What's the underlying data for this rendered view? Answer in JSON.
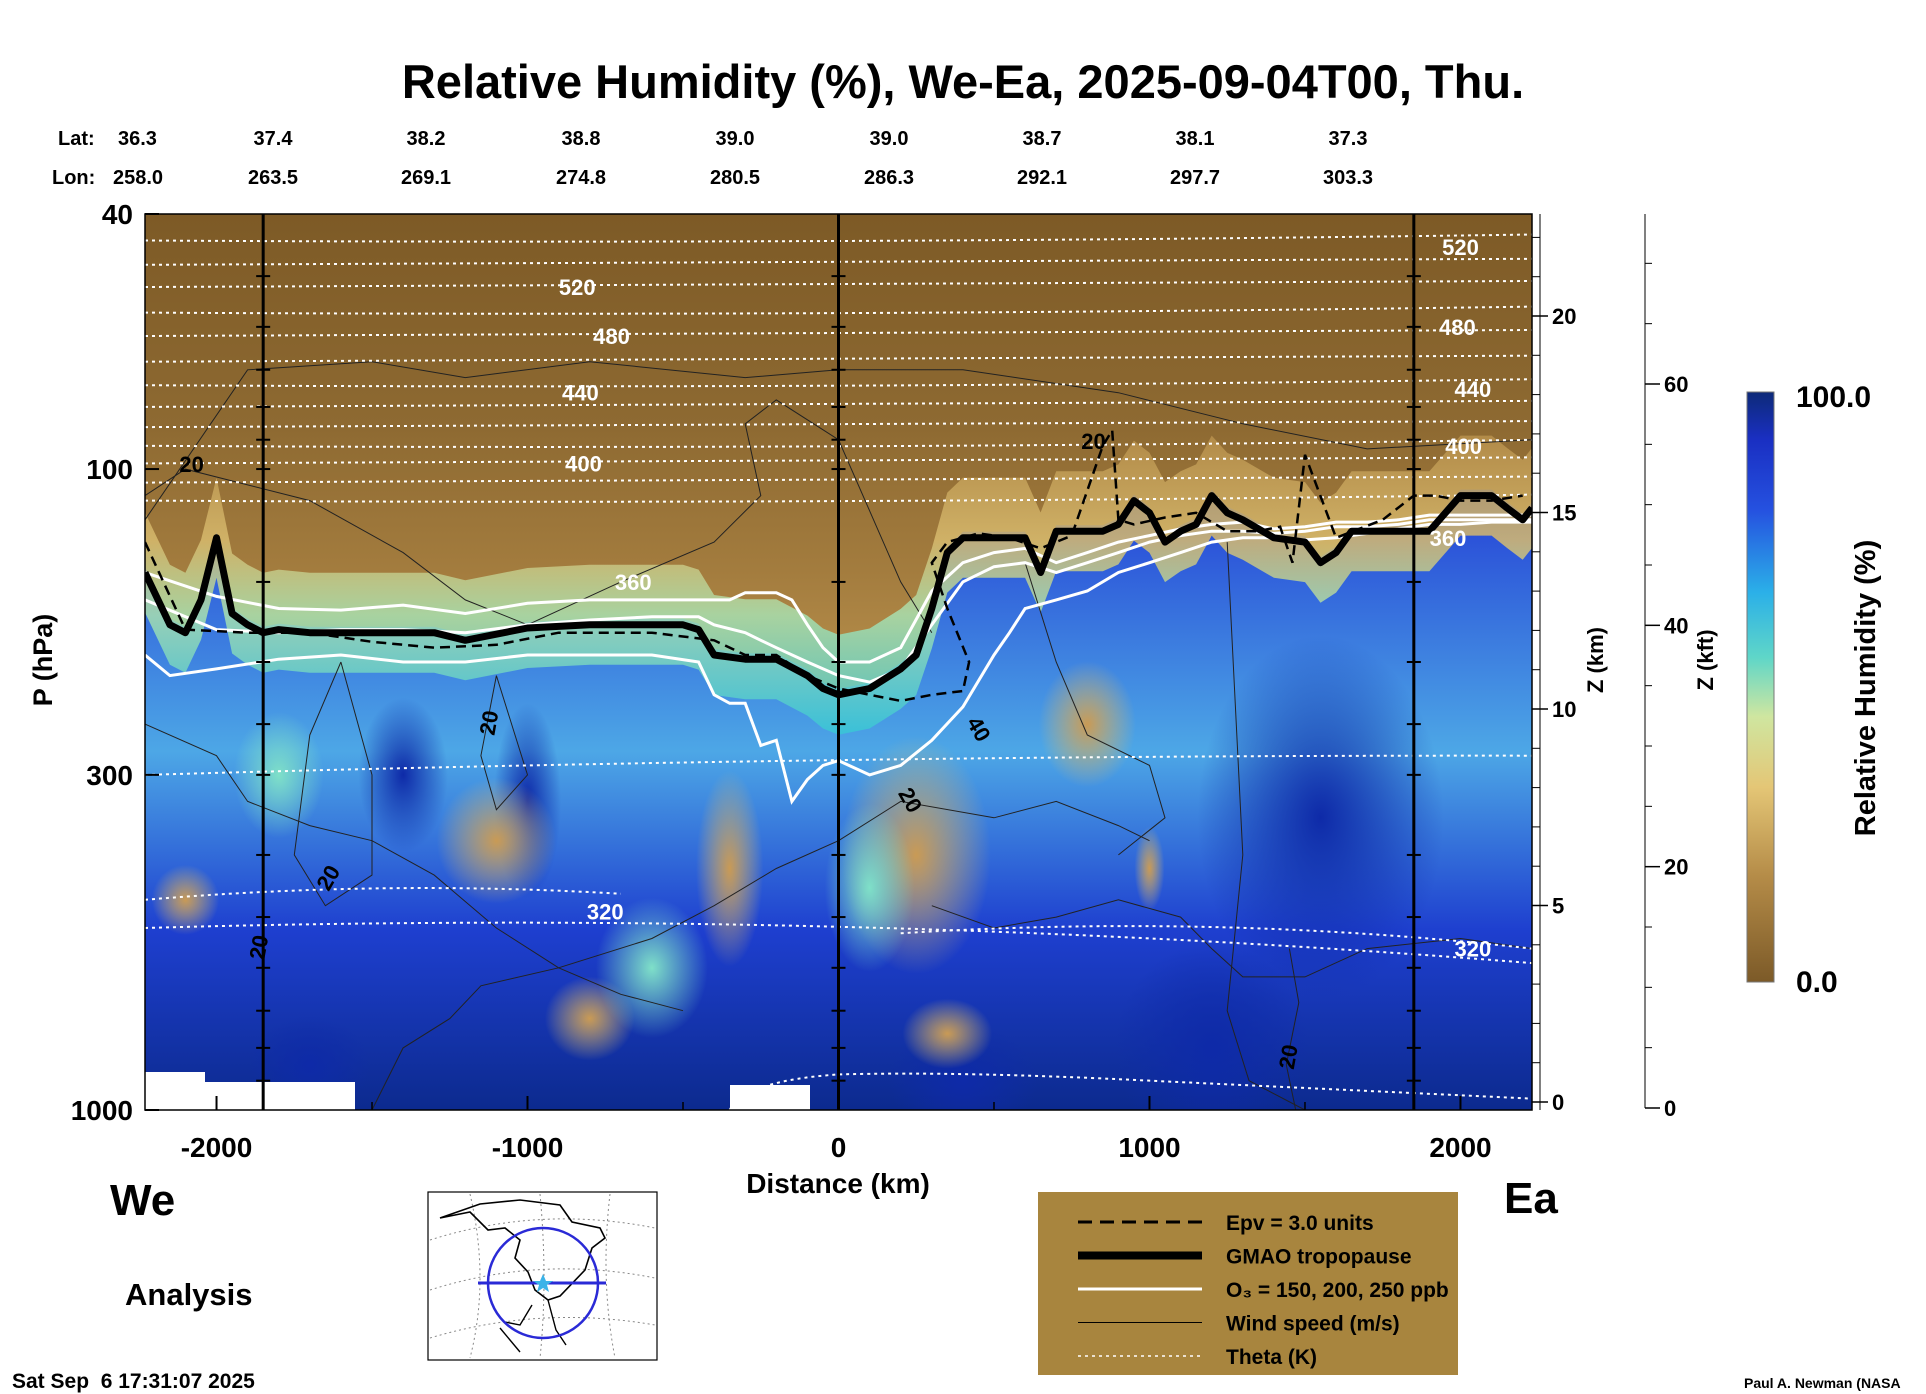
{
  "title": "Relative Humidity (%), We-Ea, 2025-09-04T00, Thu.",
  "header": {
    "lat_label": "Lat:",
    "lon_label": "Lon:",
    "lat_values": [
      "36.3",
      "37.4",
      "38.2",
      "38.8",
      "39.0",
      "39.0",
      "38.7",
      "38.1",
      "37.3"
    ],
    "lon_values": [
      "258.0",
      "263.5",
      "269.1",
      "274.8",
      "280.5",
      "286.3",
      "292.1",
      "297.7",
      "303.3"
    ]
  },
  "chart_data": {
    "type": "heatmap",
    "variable": "Relative Humidity (%)",
    "xlabel": "Distance (km)",
    "ylabel": "P (hPa)",
    "x_range": [
      -2230,
      2230
    ],
    "x_ticks": [
      -2000,
      -1000,
      0,
      1000,
      2000
    ],
    "x_tick_labels": [
      "-2000",
      "-1000",
      "0",
      "1000",
      "2000"
    ],
    "y_range": [
      1000,
      40
    ],
    "y_scale": "log",
    "y_ticks": [
      40,
      100,
      300,
      1000
    ],
    "y_tick_labels": [
      "40",
      "100",
      "300",
      "1000"
    ],
    "z_km_label": "Z (km)",
    "z_km_ticks": [
      0,
      5,
      10,
      15,
      20
    ],
    "z_km_tick_labels": [
      "0",
      "5",
      "10",
      "15",
      "20"
    ],
    "z_kft_label": "Z (kft)",
    "z_kft_ticks": [
      0,
      20,
      40,
      60
    ],
    "z_kft_tick_labels": [
      "0",
      "20",
      "40",
      "60"
    ],
    "vertical_markers_km": [
      -1850,
      0,
      1850
    ],
    "west_label": "We",
    "east_label": "Ea",
    "colorbar": {
      "label": "Relative Humidity (%)",
      "min": 0.0,
      "max": 100.0,
      "min_label": "0.0",
      "max_label": "100.0"
    },
    "theta_contour_labels": [
      {
        "label": "520",
        "x": -840,
        "p": 52
      },
      {
        "label": "480",
        "x": -730,
        "p": 62
      },
      {
        "label": "440",
        "x": -830,
        "p": 76
      },
      {
        "label": "400",
        "x": -820,
        "p": 98
      },
      {
        "label": "360",
        "x": -660,
        "p": 150
      },
      {
        "label": "320",
        "x": -750,
        "p": 490
      },
      {
        "label": "520",
        "x": 2000,
        "p": 45
      },
      {
        "label": "480",
        "x": 1990,
        "p": 60
      },
      {
        "label": "440",
        "x": 2040,
        "p": 75
      },
      {
        "label": "400",
        "x": 2010,
        "p": 92
      },
      {
        "label": "360",
        "x": 1960,
        "p": 128
      },
      {
        "label": "320",
        "x": 2040,
        "p": 560
      }
    ],
    "wind_contour_labels": [
      {
        "label": "20",
        "x": -2080,
        "p": 101
      },
      {
        "label": "20",
        "x": -1100,
        "p": 250
      },
      {
        "label": "20",
        "x": -1620,
        "p": 440
      },
      {
        "label": "20",
        "x": -1840,
        "p": 560
      },
      {
        "label": "20",
        "x": 820,
        "p": 93
      },
      {
        "label": "40",
        "x": 430,
        "p": 258
      },
      {
        "label": "20",
        "x": 210,
        "p": 333
      },
      {
        "label": "20",
        "x": 1470,
        "p": 830
      }
    ],
    "series": [
      {
        "name": "GMAO tropopause",
        "style": "thick-black",
        "x": [
          -2230,
          -2150,
          -2100,
          -2050,
          -2000,
          -1950,
          -1900,
          -1850,
          -1800,
          -1700,
          -1500,
          -1300,
          -1200,
          -1000,
          -800,
          -500,
          -450,
          -400,
          -300,
          -200,
          -100,
          -50,
          0,
          100,
          200,
          250,
          300,
          350,
          400,
          500,
          600,
          650,
          700,
          750,
          850,
          900,
          950,
          1000,
          1050,
          1100,
          1150,
          1200,
          1250,
          1300,
          1400,
          1500,
          1550,
          1600,
          1650,
          1700,
          1800,
          1900,
          2000,
          2100,
          2150,
          2200,
          2230
        ],
        "p": [
          145,
          175,
          180,
          160,
          128,
          168,
          175,
          180,
          178,
          180,
          180,
          180,
          185,
          177,
          175,
          175,
          178,
          195,
          198,
          198,
          210,
          220,
          225,
          220,
          205,
          195,
          165,
          135,
          128,
          128,
          128,
          145,
          125,
          125,
          125,
          122,
          112,
          117,
          130,
          125,
          122,
          110,
          117,
          120,
          128,
          130,
          140,
          135,
          125,
          125,
          125,
          125,
          110,
          110,
          115,
          120,
          115
        ]
      },
      {
        "name": "Epv = 3.0 units",
        "style": "dashed-black",
        "x": [
          -2230,
          -2100,
          -1900,
          -1700,
          -1500,
          -1300,
          -1100,
          -900,
          -600,
          -400,
          -300,
          -200,
          -100,
          0,
          100,
          200,
          300,
          400,
          420,
          350,
          300,
          350,
          450,
          550,
          650,
          750,
          850,
          880,
          900,
          950,
          1050,
          1150,
          1250,
          1350,
          1420,
          1460,
          1500,
          1600,
          1750,
          1850,
          1920,
          2000,
          2100,
          2200
        ],
        "p": [
          130,
          178,
          180,
          180,
          186,
          190,
          188,
          180,
          180,
          185,
          195,
          195,
          210,
          220,
          225,
          230,
          225,
          222,
          200,
          165,
          140,
          130,
          126,
          128,
          133,
          127,
          92,
          87,
          120,
          122,
          119,
          117,
          125,
          125,
          123,
          140,
          95,
          128,
          120,
          110,
          110,
          112,
          112,
          110
        ]
      },
      {
        "name": "O3 = 150 ppb",
        "style": "white",
        "x": [
          -2230,
          -2000,
          -1800,
          -1600,
          -1400,
          -1200,
          -1000,
          -800,
          -600,
          -450,
          -400,
          -350,
          -300,
          -250,
          -200,
          -150,
          -100,
          -50,
          0,
          100,
          200,
          300,
          400,
          500,
          600,
          700,
          800,
          900,
          1000,
          1100,
          1200,
          1300,
          1400,
          1500,
          1600,
          1700,
          1800,
          1900,
          2000,
          2100,
          2230
        ],
        "p": [
          145,
          158,
          165,
          166,
          163,
          168,
          162,
          160,
          160,
          160,
          160,
          160,
          156,
          156,
          156,
          160,
          175,
          190,
          200,
          200,
          190,
          155,
          140,
          135,
          133,
          140,
          135,
          130,
          127,
          124,
          122,
          121,
          124,
          123,
          121,
          121,
          120,
          118,
          118,
          118,
          118
        ]
      },
      {
        "name": "O3 = 200 ppb",
        "style": "white",
        "x": [
          -2230,
          -2000,
          -1800,
          -1600,
          -1400,
          -1200,
          -1000,
          -800,
          -600,
          -450,
          -400,
          -300,
          -250,
          -200,
          -100,
          0,
          100,
          200,
          300,
          400,
          500,
          600,
          700,
          800,
          900,
          1000,
          1100,
          1200,
          1300,
          1400,
          1500,
          1600,
          1700,
          1800,
          1900,
          2000,
          2100,
          2230
        ],
        "p": [
          160,
          178,
          180,
          178,
          178,
          180,
          175,
          172,
          170,
          170,
          175,
          180,
          185,
          190,
          200,
          210,
          215,
          205,
          175,
          150,
          142,
          140,
          145,
          140,
          135,
          130,
          127,
          125,
          125,
          126,
          125,
          123,
          123,
          122,
          120,
          120,
          120,
          120
        ]
      },
      {
        "name": "O3 = 250 ppb",
        "style": "white",
        "x": [
          -2230,
          -2150,
          -2000,
          -1800,
          -1600,
          -1400,
          -1200,
          -1000,
          -800,
          -600,
          -450,
          -400,
          -350,
          -300,
          -250,
          -200,
          -150,
          -100,
          -50,
          0,
          100,
          200,
          300,
          400,
          500,
          550,
          600,
          700,
          800,
          900,
          1000,
          1100,
          1200,
          1300,
          1400,
          1500,
          1600,
          1700,
          1800,
          1900,
          2000,
          2100,
          2230
        ],
        "p": [
          195,
          210,
          205,
          198,
          195,
          200,
          200,
          195,
          195,
          195,
          200,
          225,
          232,
          232,
          270,
          265,
          330,
          305,
          290,
          285,
          300,
          290,
          265,
          235,
          195,
          180,
          165,
          160,
          155,
          145,
          140,
          135,
          130,
          128,
          128,
          129,
          128,
          126,
          124,
          122,
          122,
          121,
          121
        ]
      }
    ],
    "legend": [
      {
        "style": "dashed-black",
        "label": "Epv = 3.0 units"
      },
      {
        "style": "thick-black",
        "label": "GMAO tropopause"
      },
      {
        "style": "white",
        "label": "O₃ = 150, 200, 250 ppb"
      },
      {
        "style": "thin-black",
        "label": "Wind speed (m/s)"
      },
      {
        "style": "dotted-white",
        "label": "Theta (K)"
      }
    ]
  },
  "footer": {
    "mode": "Analysis",
    "timestamp": "Sat Sep  6 17:31:07 2025",
    "credit": "Paul A. Newman (NASA"
  },
  "colors": {
    "dry": "#8a6630",
    "tan": "#c7a15a",
    "yellow": "#e9cf7a",
    "cyan": "#3cc7cc",
    "blue": "#1f3fd6",
    "navy": "#0b2a8c",
    "legend_bg": "#a8853e"
  }
}
